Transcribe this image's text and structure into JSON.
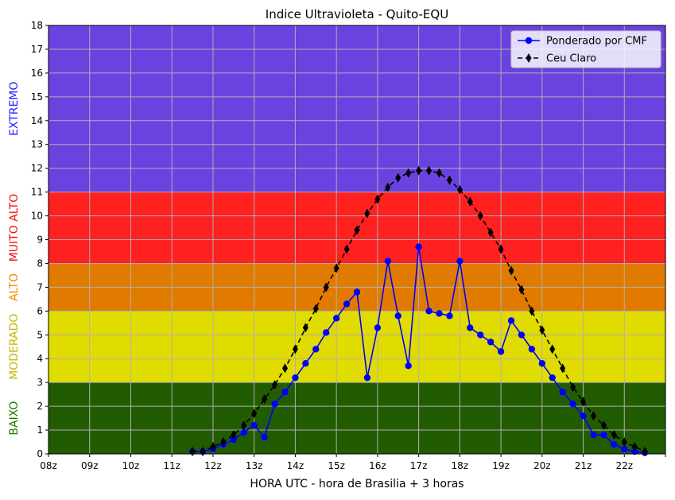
{
  "chart_data": {
    "type": "line",
    "title": "Indice Ultravioleta - Quito-EQU",
    "xlabel": "HORA UTC - hora de Brasilia + 3 horas",
    "ylabel": "",
    "ylim": [
      0,
      18
    ],
    "xlim": [
      8,
      23
    ],
    "grid": true,
    "legend_position": "top-right",
    "x_ticks": [
      {
        "x": 8,
        "label": "08z"
      },
      {
        "x": 9,
        "label": "09z"
      },
      {
        "x": 10,
        "label": "10z"
      },
      {
        "x": 11,
        "label": "11z"
      },
      {
        "x": 12,
        "label": "12z"
      },
      {
        "x": 13,
        "label": "13z"
      },
      {
        "x": 14,
        "label": "14z"
      },
      {
        "x": 15,
        "label": "15z"
      },
      {
        "x": 16,
        "label": "16z"
      },
      {
        "x": 17,
        "label": "17z"
      },
      {
        "x": 18,
        "label": "18z"
      },
      {
        "x": 19,
        "label": "19z"
      },
      {
        "x": 20,
        "label": "20z"
      },
      {
        "x": 21,
        "label": "21z"
      },
      {
        "x": 22,
        "label": "22z"
      },
      {
        "x": 23,
        "label": ""
      }
    ],
    "y_ticks": [
      0,
      1,
      2,
      3,
      4,
      5,
      6,
      7,
      8,
      9,
      10,
      11,
      12,
      13,
      14,
      15,
      16,
      17,
      18
    ],
    "bands": [
      {
        "from": 0,
        "to": 3,
        "color": "#225c00",
        "label": "BAIXO",
        "label_color": "#1e7a00"
      },
      {
        "from": 3,
        "to": 6,
        "color": "#e0dc00",
        "label": "MODERADO",
        "label_color": "#c9b800"
      },
      {
        "from": 6,
        "to": 8,
        "color": "#e07b00",
        "label": "ALTO",
        "label_color": "#f08a00"
      },
      {
        "from": 8,
        "to": 11,
        "color": "#ff2020",
        "label": "MUITO ALTO",
        "label_color": "#ee1010"
      },
      {
        "from": 11,
        "to": 18,
        "color": "#6a42e0",
        "label": "EXTREMO",
        "label_color": "#2020ff"
      }
    ],
    "series": [
      {
        "name": "Ponderado por CMF",
        "color": "#0000ff",
        "style": "solid",
        "marker": "circle",
        "x": [
          11.5,
          11.75,
          12,
          12.25,
          12.5,
          12.75,
          13,
          13.25,
          13.5,
          13.75,
          14,
          14.25,
          14.5,
          14.75,
          15,
          15.25,
          15.5,
          15.75,
          16,
          16.25,
          16.5,
          16.75,
          17,
          17.25,
          17.5,
          17.75,
          18,
          18.25,
          18.5,
          18.75,
          19,
          19.25,
          19.5,
          19.75,
          20,
          20.25,
          20.5,
          20.75,
          21,
          21.25,
          21.5,
          21.75,
          22,
          22.25,
          22.5
        ],
        "y": [
          0.1,
          0.1,
          0.2,
          0.4,
          0.6,
          0.9,
          1.2,
          0.7,
          2.1,
          2.6,
          3.2,
          3.8,
          4.4,
          5.1,
          5.7,
          6.3,
          6.8,
          3.2,
          5.3,
          8.1,
          5.8,
          3.7,
          8.7,
          6.0,
          5.9,
          5.8,
          8.1,
          5.3,
          5.0,
          4.7,
          4.3,
          5.6,
          5.0,
          4.4,
          3.8,
          3.2,
          2.6,
          2.1,
          1.6,
          0.8,
          0.8,
          0.4,
          0.2,
          0.1,
          0.05
        ]
      },
      {
        "name": "Ceu Claro",
        "color": "#000000",
        "style": "dashed",
        "marker": "diamond",
        "x": [
          11.5,
          11.75,
          12,
          12.25,
          12.5,
          12.75,
          13,
          13.25,
          13.5,
          13.75,
          14,
          14.25,
          14.5,
          14.75,
          15,
          15.25,
          15.5,
          15.75,
          16,
          16.25,
          16.5,
          16.75,
          17,
          17.25,
          17.5,
          17.75,
          18,
          18.25,
          18.5,
          18.75,
          19,
          19.25,
          19.5,
          19.75,
          20,
          20.25,
          20.5,
          20.75,
          21,
          21.25,
          21.5,
          21.75,
          22,
          22.25,
          22.5
        ],
        "y": [
          0.1,
          0.1,
          0.3,
          0.5,
          0.8,
          1.2,
          1.7,
          2.3,
          2.9,
          3.6,
          4.4,
          5.3,
          6.1,
          7.0,
          7.8,
          8.6,
          9.4,
          10.1,
          10.7,
          11.2,
          11.6,
          11.8,
          11.9,
          11.9,
          11.8,
          11.5,
          11.1,
          10.6,
          10.0,
          9.3,
          8.6,
          7.7,
          6.9,
          6.0,
          5.2,
          4.4,
          3.6,
          2.8,
          2.2,
          1.6,
          1.2,
          0.8,
          0.5,
          0.3,
          0.1
        ]
      }
    ]
  }
}
